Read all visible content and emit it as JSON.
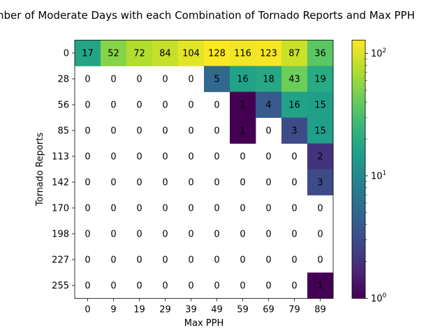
{
  "chart_data": {
    "type": "heatmap",
    "title": "Number of Moderate Days with each Combination of Tornado Reports and Max PPH",
    "xlabel": "Max PPH",
    "ylabel": "Tornado Reports",
    "x_ticks": [
      "0",
      "9",
      "19",
      "29",
      "39",
      "49",
      "59",
      "69",
      "79",
      "89"
    ],
    "y_ticks": [
      "0",
      "28",
      "56",
      "85",
      "113",
      "142",
      "170",
      "198",
      "227",
      "255"
    ],
    "values": [
      [
        17,
        52,
        72,
        84,
        104,
        128,
        116,
        123,
        87,
        36
      ],
      [
        0,
        0,
        0,
        0,
        0,
        5,
        16,
        18,
        43,
        19
      ],
      [
        0,
        0,
        0,
        0,
        0,
        0,
        1,
        4,
        16,
        15
      ],
      [
        0,
        0,
        0,
        0,
        0,
        0,
        1,
        0,
        3,
        15
      ],
      [
        0,
        0,
        0,
        0,
        0,
        0,
        0,
        0,
        0,
        2
      ],
      [
        0,
        0,
        0,
        0,
        0,
        0,
        0,
        0,
        0,
        3
      ],
      [
        0,
        0,
        0,
        0,
        0,
        0,
        0,
        0,
        0,
        0
      ],
      [
        0,
        0,
        0,
        0,
        0,
        0,
        0,
        0,
        0,
        0
      ],
      [
        0,
        0,
        0,
        0,
        0,
        0,
        0,
        0,
        0,
        0
      ],
      [
        0,
        0,
        0,
        0,
        0,
        0,
        0,
        0,
        0,
        1
      ]
    ],
    "color_scale": "log",
    "colormap": "viridis",
    "zero_cells": "blank",
    "colorbar": {
      "range": [
        1,
        128
      ],
      "ticks": [
        {
          "value": 1,
          "base": "10",
          "exp": "0"
        },
        {
          "value": 10,
          "base": "10",
          "exp": "1"
        },
        {
          "value": 100,
          "base": "10",
          "exp": "2"
        }
      ]
    },
    "grid": false
  }
}
